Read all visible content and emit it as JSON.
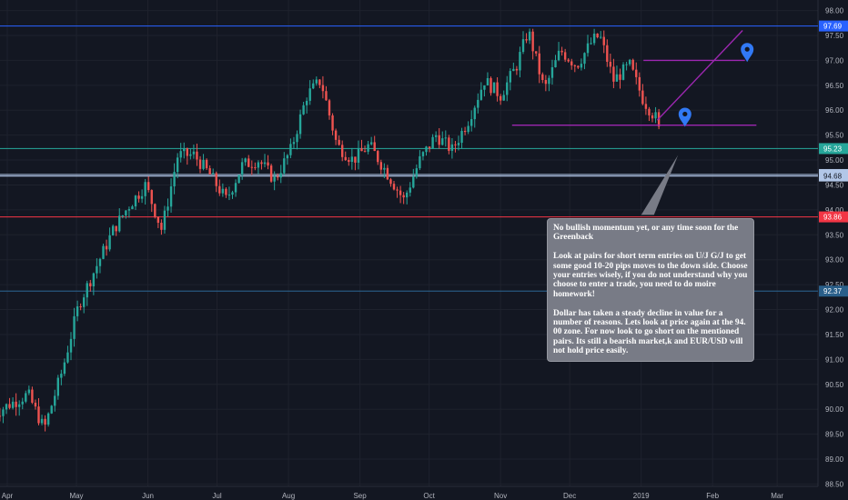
{
  "chart_data": {
    "type": "candlestick",
    "title": "",
    "xlabel": "",
    "ylabel": "",
    "x_ticks": [
      "Apr",
      "May",
      "Jun",
      "Jul",
      "Aug",
      "Sep",
      "Oct",
      "Nov",
      "Dec",
      "2019",
      "Feb",
      "Mar"
    ],
    "y_ticks": [
      "98.00",
      "97.50",
      "97.00",
      "96.50",
      "96.00",
      "95.50",
      "95.00",
      "94.50",
      "94.00",
      "93.50",
      "93.00",
      "92.50",
      "92.00",
      "91.50",
      "91.00",
      "90.50",
      "90.00",
      "89.50",
      "89.00",
      "88.50"
    ],
    "ylim": [
      88.4,
      98.1
    ],
    "grid": true,
    "price_path": [
      [
        "2018-03-26",
        89.9
      ],
      [
        "2018-04-02",
        90.1
      ],
      [
        "2018-04-10",
        90.3
      ],
      [
        "2018-04-17",
        89.6
      ],
      [
        "2018-04-25",
        90.8
      ],
      [
        "2018-05-02",
        92.1
      ],
      [
        "2018-05-10",
        92.9
      ],
      [
        "2018-05-17",
        93.6
      ],
      [
        "2018-05-24",
        94.1
      ],
      [
        "2018-05-31",
        94.5
      ],
      [
        "2018-06-07",
        93.6
      ],
      [
        "2018-06-14",
        95.1
      ],
      [
        "2018-06-21",
        95.1
      ],
      [
        "2018-06-28",
        94.7
      ],
      [
        "2018-07-05",
        94.2
      ],
      [
        "2018-07-12",
        94.9
      ],
      [
        "2018-07-19",
        95.0
      ],
      [
        "2018-07-26",
        94.6
      ],
      [
        "2018-08-02",
        95.2
      ],
      [
        "2018-08-09",
        96.3
      ],
      [
        "2018-08-15",
        96.6
      ],
      [
        "2018-08-22",
        95.3
      ],
      [
        "2018-08-29",
        95.0
      ],
      [
        "2018-09-05",
        95.3
      ],
      [
        "2018-09-12",
        94.8
      ],
      [
        "2018-09-20",
        94.2
      ],
      [
        "2018-09-27",
        95.0
      ],
      [
        "2018-10-04",
        95.5
      ],
      [
        "2018-10-11",
        95.2
      ],
      [
        "2018-10-18",
        95.8
      ],
      [
        "2018-10-25",
        96.6
      ],
      [
        "2018-11-01",
        96.3
      ],
      [
        "2018-11-08",
        96.9
      ],
      [
        "2018-11-13",
        97.6
      ],
      [
        "2018-11-20",
        96.4
      ],
      [
        "2018-11-27",
        97.2
      ],
      [
        "2018-12-04",
        96.9
      ],
      [
        "2018-12-11",
        97.4
      ],
      [
        "2018-12-14",
        97.5
      ],
      [
        "2018-12-20",
        96.6
      ],
      [
        "2018-12-27",
        96.9
      ],
      [
        "2019-01-02",
        96.2
      ],
      [
        "2019-01-08",
        95.8
      ],
      [
        "2019-01-10",
        95.2
      ]
    ],
    "horizontal_lines": [
      {
        "value": 97.69,
        "label": "97.69",
        "color": "#2962ff"
      },
      {
        "value": 95.23,
        "label": "95.23",
        "color": "#26a69a"
      },
      {
        "value": 94.71,
        "label": "94.71",
        "color": "#b2c7e8"
      },
      {
        "value": 94.68,
        "label": "94.68",
        "color": "#b2c7e8"
      },
      {
        "value": 93.86,
        "label": "93.86",
        "color": "#f23645"
      },
      {
        "value": 92.37,
        "label": "92.37",
        "color": "#2a5f8a"
      }
    ],
    "drawings": {
      "support_line": {
        "from": [
          "2018-11-06",
          95.7
        ],
        "to": [
          "2019-02-20",
          95.7
        ],
        "color": "#9c27b0"
      },
      "upper_line": {
        "from": [
          "2019-01-02",
          97.0
        ],
        "to": [
          "2019-02-15",
          97.0
        ],
        "color": "#9c27b0"
      },
      "trend_up": {
        "from": [
          "2019-01-08",
          95.8
        ],
        "to": [
          "2019-02-14",
          97.6
        ],
        "color": "#9c27b0"
      },
      "marker_pins": [
        [
          "2019-02-16",
          97.15
        ],
        [
          "2019-01-20",
          95.85
        ]
      ],
      "pin_color": "#3179f5",
      "callout_pointer": {
        "from": [
          "2019-01-17",
          95.1
        ],
        "to": [
          "2019-01-03",
          93.9
        ]
      }
    },
    "colors": {
      "up": "#26a69a",
      "down": "#ef5350",
      "background": "#131722",
      "grid": "#1e222d",
      "text": "#b2b5be"
    }
  },
  "annotation": {
    "p1": "No bullish momentum yet, or any time soon for the Greenback",
    "p2": "Look at pairs for short term entries on U/J G/J to get some good 10-20 pips moves to the down side. Choose your entries wisely, if you do not understand why you choose to enter a trade, you need to do moire homework!",
    "p3": "Dollar has taken a steady decline in value for a number of reasons. Lets look at price again at the 94. 00 zone. For now look to go short on the mentioned pairs. Its still a bearish market,k and EUR/USD will not hold price easily."
  }
}
